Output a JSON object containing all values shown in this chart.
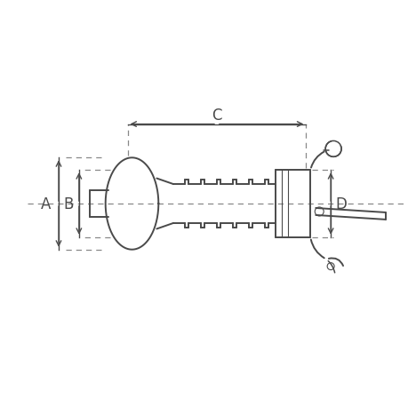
{
  "bg_color": "#ffffff",
  "line_color": "#4a4a4a",
  "dim_color": "#4a4a4a",
  "dashed_color": "#888888",
  "figsize": [
    4.6,
    4.6
  ],
  "dpi": 100,
  "label_A": "A",
  "label_B": "B",
  "label_C": "C",
  "label_D": "D",
  "font_size": 12
}
